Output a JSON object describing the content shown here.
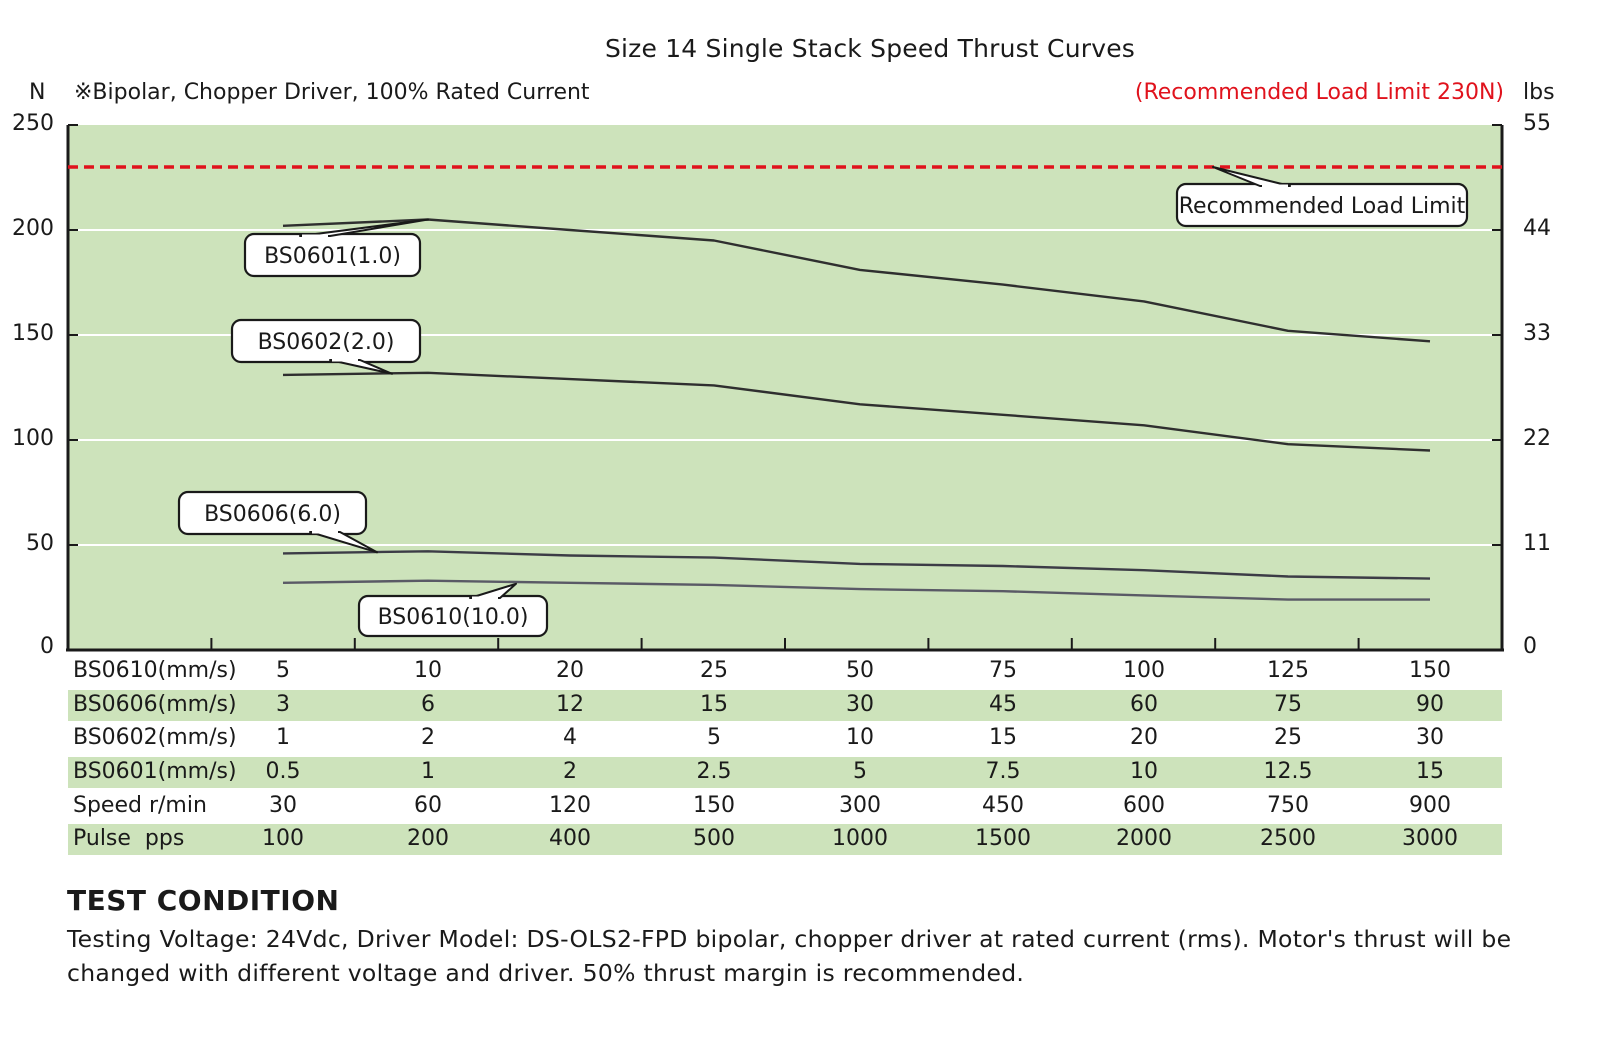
{
  "title": "Size 14 Single Stack Speed Thrust Curves",
  "left_unit": "N",
  "right_unit": "lbs",
  "note": "※Bipolar, Chopper Driver, 100% Rated Current",
  "limit_note": "(Recommended Load Limit 230N)",
  "colors": {
    "plot_bg": "#cde3bb",
    "limit_line": "#e0121c",
    "curve": "#333333",
    "grid": "#ffffff"
  },
  "chart_data": {
    "type": "line",
    "title": "Size 14 Single Stack Speed Thrust Curves",
    "ylabel": "N",
    "y2label": "lbs",
    "ylim": [
      0,
      250
    ],
    "yticks": [
      "0",
      "50",
      "100",
      "150",
      "200",
      "250"
    ],
    "y2ticks": [
      "0",
      "11",
      "22",
      "33",
      "44",
      "55"
    ],
    "grid": true,
    "x_columns": [
      "Pulse 100 pps",
      "200",
      "400",
      "500",
      "1000",
      "1500",
      "2000",
      "2500",
      "3000"
    ],
    "series": [
      {
        "name": "BS0601(1.0)",
        "values": [
          202,
          205,
          200,
          195,
          181,
          174,
          166,
          152,
          147
        ]
      },
      {
        "name": "BS0602(2.0)",
        "values": [
          131,
          132,
          129,
          126,
          117,
          112,
          107,
          98,
          95
        ]
      },
      {
        "name": "BS0606(6.0)",
        "values": [
          46,
          47,
          45,
          44,
          41,
          40,
          38,
          35,
          34
        ]
      },
      {
        "name": "BS0610(10.0)",
        "values": [
          32,
          33,
          32,
          31,
          29,
          28,
          26,
          24,
          24
        ]
      }
    ],
    "annotations": [
      {
        "text": "Recommended Load Limit",
        "value": 230
      }
    ]
  },
  "table": {
    "rows": [
      {
        "label": "BS0610(mm/s)",
        "values": [
          "5",
          "10",
          "20",
          "25",
          "50",
          "75",
          "100",
          "125",
          "150"
        ]
      },
      {
        "label": "BS0606(mm/s)",
        "values": [
          "3",
          "6",
          "12",
          "15",
          "30",
          "45",
          "60",
          "75",
          "90"
        ]
      },
      {
        "label": "BS0602(mm/s)",
        "values": [
          "1",
          "2",
          "4",
          "5",
          "10",
          "15",
          "20",
          "25",
          "30"
        ]
      },
      {
        "label": "BS0601(mm/s)",
        "values": [
          "0.5",
          "1",
          "2",
          "2.5",
          "5",
          "7.5",
          "10",
          "12.5",
          "15"
        ]
      },
      {
        "label": "Speed r/min",
        "values": [
          "30",
          "60",
          "120",
          "150",
          "300",
          "450",
          "600",
          "750",
          "900"
        ]
      },
      {
        "label": "Pulse  pps",
        "values": [
          "100",
          "200",
          "400",
          "500",
          "1000",
          "1500",
          "2000",
          "2500",
          "3000"
        ]
      }
    ]
  },
  "test_condition": {
    "heading": "TEST CONDITION",
    "text": "Testing Voltage: 24Vdc, Driver Model: DS-OLS2-FPD bipolar, chopper driver at rated current (rms). Motor's thrust will be changed with different voltage and driver. 50% thrust margin is recommended."
  }
}
